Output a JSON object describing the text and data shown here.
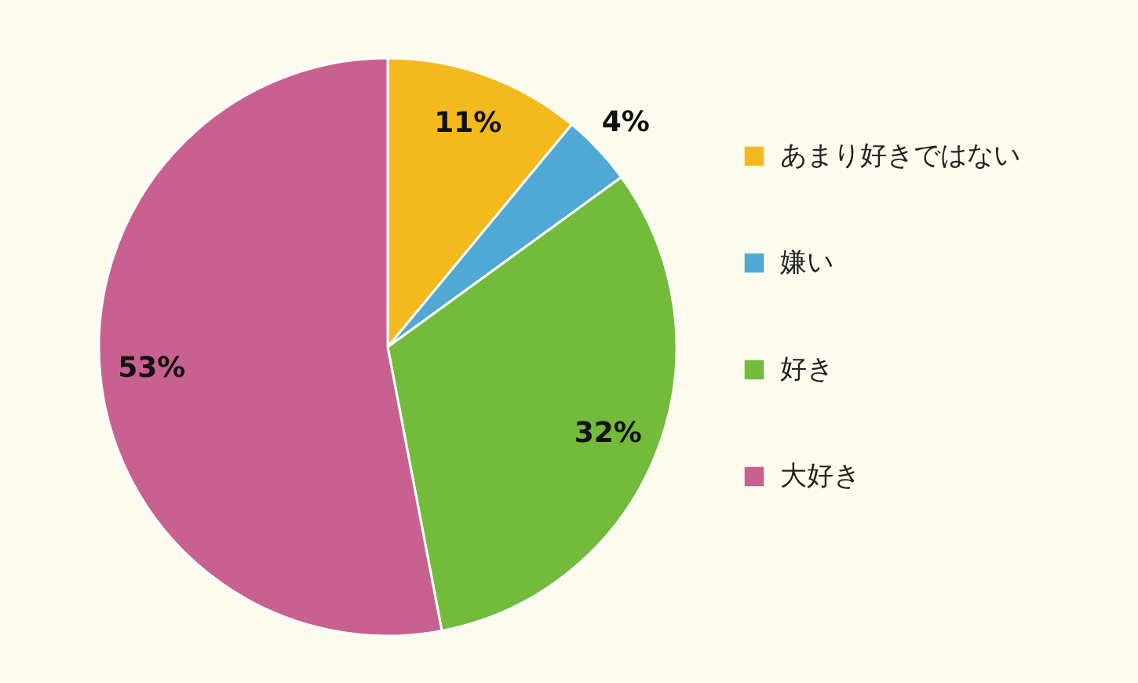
{
  "chart_data": {
    "type": "pie",
    "categories": [
      "あまり好きではない",
      "嫌い",
      "好き",
      "大好き"
    ],
    "values": [
      11,
      4,
      32,
      53
    ],
    "colors": [
      "#f4b91d",
      "#4fa9d4",
      "#73bb3a",
      "#c8618f"
    ],
    "value_labels": [
      "11%",
      "4%",
      "32%",
      "53%"
    ],
    "legend": "right"
  }
}
